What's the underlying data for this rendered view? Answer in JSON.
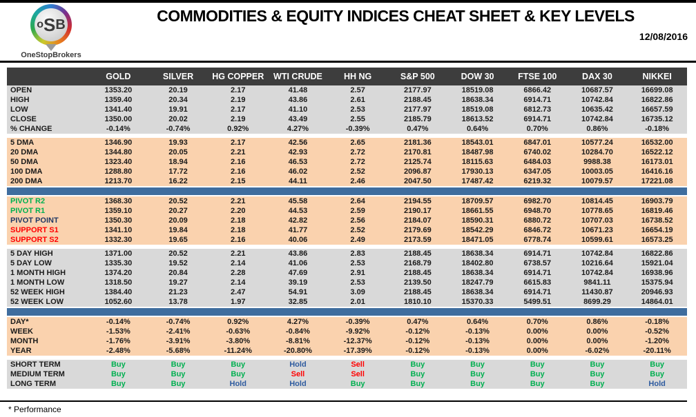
{
  "header": {
    "title": "COMMODITIES & EQUITY INDICES CHEAT SHEET & KEY LEVELS",
    "date": "12/08/2016",
    "logo": {
      "l1": "o",
      "l2": "S",
      "l3": "B",
      "brand": "OneStopBrokers"
    }
  },
  "colors": {
    "header_bar": "#3d3d3d",
    "gray": "#d9d9d9",
    "peach": "#fad2ae",
    "divider_blue": "#3f6d9e",
    "buy_green": "#00b050",
    "sell_red": "#ff0000",
    "hold_blue": "#2e5b9f",
    "pivot_green": "#00b050",
    "pivot_navy": "#1f3864",
    "support_red": "#ff0000"
  },
  "table": {
    "columns": [
      "GOLD",
      "SILVER",
      "HG COPPER",
      "WTI CRUDE",
      "HH NG",
      "S&P 500",
      "DOW 30",
      "FTSE 100",
      "DAX 30",
      "NIKKEI"
    ],
    "sections": [
      {
        "name": "ohlc",
        "bg": "gray",
        "divider_after": "gap",
        "rows": [
          {
            "label": "OPEN",
            "values": [
              "1353.20",
              "20.19",
              "2.17",
              "41.48",
              "2.57",
              "2177.97",
              "18519.08",
              "6866.42",
              "10687.57",
              "16699.08"
            ]
          },
          {
            "label": "HIGH",
            "values": [
              "1359.40",
              "20.34",
              "2.19",
              "43.86",
              "2.61",
              "2188.45",
              "18638.34",
              "6914.71",
              "10742.84",
              "16822.86"
            ]
          },
          {
            "label": "LOW",
            "values": [
              "1341.40",
              "19.91",
              "2.17",
              "41.10",
              "2.53",
              "2177.97",
              "18519.08",
              "6812.73",
              "10635.42",
              "16657.59"
            ]
          },
          {
            "label": "CLOSE",
            "values": [
              "1350.00",
              "20.02",
              "2.19",
              "43.49",
              "2.55",
              "2185.79",
              "18613.52",
              "6914.71",
              "10742.84",
              "16735.12"
            ]
          },
          {
            "label": "% CHANGE",
            "values": [
              "-0.14%",
              "-0.74%",
              "0.92%",
              "4.27%",
              "-0.39%",
              "0.47%",
              "0.64%",
              "0.70%",
              "0.86%",
              "-0.18%"
            ]
          }
        ]
      },
      {
        "name": "dma",
        "bg": "peach",
        "divider_after": "blue",
        "rows": [
          {
            "label": "5 DMA",
            "values": [
              "1346.90",
              "19.93",
              "2.17",
              "42.56",
              "2.65",
              "2181.36",
              "18543.01",
              "6847.01",
              "10577.24",
              "16532.00"
            ]
          },
          {
            "label": "20 DMA",
            "values": [
              "1344.80",
              "20.05",
              "2.21",
              "42.93",
              "2.72",
              "2170.81",
              "18487.98",
              "6740.02",
              "10284.70",
              "16522.12"
            ]
          },
          {
            "label": "50 DMA",
            "values": [
              "1323.40",
              "18.94",
              "2.16",
              "46.53",
              "2.72",
              "2125.74",
              "18115.63",
              "6484.03",
              "9988.38",
              "16173.01"
            ]
          },
          {
            "label": "100 DMA",
            "values": [
              "1288.80",
              "17.72",
              "2.16",
              "46.02",
              "2.52",
              "2096.87",
              "17930.13",
              "6347.05",
              "10003.05",
              "16416.16"
            ]
          },
          {
            "label": "200 DMA",
            "values": [
              "1213.70",
              "16.22",
              "2.15",
              "44.11",
              "2.46",
              "2047.50",
              "17487.42",
              "6219.32",
              "10079.57",
              "17221.08"
            ]
          }
        ]
      },
      {
        "name": "pivots",
        "bg": "peach",
        "divider_after": "gap",
        "rows": [
          {
            "label": "PIVOT R2",
            "label_color": "#00b050",
            "values": [
              "1368.30",
              "20.52",
              "2.21",
              "45.58",
              "2.64",
              "2194.55",
              "18709.57",
              "6982.70",
              "10814.45",
              "16903.79"
            ]
          },
          {
            "label": "PIVOT R1",
            "label_color": "#00b050",
            "values": [
              "1359.10",
              "20.27",
              "2.20",
              "44.53",
              "2.59",
              "2190.17",
              "18661.55",
              "6948.70",
              "10778.65",
              "16819.46"
            ]
          },
          {
            "label": "PIVOT POINT",
            "label_color": "#1f3864",
            "values": [
              "1350.30",
              "20.09",
              "2.18",
              "42.82",
              "2.56",
              "2184.07",
              "18590.31",
              "6880.72",
              "10707.03",
              "16738.52"
            ]
          },
          {
            "label": "SUPPORT S1",
            "label_color": "#ff0000",
            "values": [
              "1341.10",
              "19.84",
              "2.18",
              "41.77",
              "2.52",
              "2179.69",
              "18542.29",
              "6846.72",
              "10671.23",
              "16654.19"
            ]
          },
          {
            "label": "SUPPORT S2",
            "label_color": "#ff0000",
            "values": [
              "1332.30",
              "19.65",
              "2.16",
              "40.06",
              "2.49",
              "2173.59",
              "18471.05",
              "6778.74",
              "10599.61",
              "16573.25"
            ]
          }
        ]
      },
      {
        "name": "ranges",
        "bg": "gray",
        "divider_after": "blue",
        "rows": [
          {
            "label": "5 DAY HIGH",
            "values": [
              "1371.00",
              "20.52",
              "2.21",
              "43.86",
              "2.83",
              "2188.45",
              "18638.34",
              "6914.71",
              "10742.84",
              "16822.86"
            ]
          },
          {
            "label": "5 DAY LOW",
            "values": [
              "1335.30",
              "19.52",
              "2.14",
              "41.06",
              "2.53",
              "2168.79",
              "18402.80",
              "6738.57",
              "10216.64",
              "15921.04"
            ]
          },
          {
            "label": "1 MONTH HIGH",
            "values": [
              "1374.20",
              "20.84",
              "2.28",
              "47.69",
              "2.91",
              "2188.45",
              "18638.34",
              "6914.71",
              "10742.84",
              "16938.96"
            ]
          },
          {
            "label": "1 MONTH LOW",
            "values": [
              "1318.50",
              "19.27",
              "2.14",
              "39.19",
              "2.53",
              "2139.50",
              "18247.79",
              "6615.83",
              "9841.11",
              "15375.94"
            ]
          },
          {
            "label": "52 WEEK HIGH",
            "values": [
              "1384.40",
              "21.23",
              "2.47",
              "54.91",
              "3.09",
              "2188.45",
              "18638.34",
              "6914.71",
              "11430.87",
              "20946.93"
            ]
          },
          {
            "label": "52 WEEK LOW",
            "values": [
              "1052.60",
              "13.78",
              "1.97",
              "32.85",
              "2.01",
              "1810.10",
              "15370.33",
              "5499.51",
              "8699.29",
              "14864.01"
            ]
          }
        ]
      },
      {
        "name": "performance",
        "bg": "peach",
        "divider_after": "gap",
        "rows": [
          {
            "label": "DAY*",
            "values": [
              "-0.14%",
              "-0.74%",
              "0.92%",
              "4.27%",
              "-0.39%",
              "0.47%",
              "0.64%",
              "0.70%",
              "0.86%",
              "-0.18%"
            ]
          },
          {
            "label": "WEEK",
            "values": [
              "-1.53%",
              "-2.41%",
              "-0.63%",
              "-0.84%",
              "-9.92%",
              "-0.12%",
              "-0.13%",
              "0.00%",
              "0.00%",
              "-0.52%"
            ]
          },
          {
            "label": "MONTH",
            "values": [
              "-1.76%",
              "-3.91%",
              "-3.80%",
              "-8.81%",
              "-12.37%",
              "-0.12%",
              "-0.13%",
              "0.00%",
              "0.00%",
              "-1.20%"
            ]
          },
          {
            "label": "YEAR",
            "values": [
              "-2.48%",
              "-5.68%",
              "-11.24%",
              "-20.80%",
              "-17.39%",
              "-0.12%",
              "-0.13%",
              "0.00%",
              "-6.02%",
              "-20.11%"
            ]
          }
        ]
      },
      {
        "name": "signals",
        "bg": "gray",
        "divider_after": "none",
        "value_colors": {
          "Buy": "#00b050",
          "Sell": "#ff0000",
          "Hold": "#2e5b9f"
        },
        "rows": [
          {
            "label": "SHORT TERM",
            "values": [
              "Buy",
              "Buy",
              "Buy",
              "Hold",
              "Sell",
              "Buy",
              "Buy",
              "Buy",
              "Buy",
              "Buy"
            ]
          },
          {
            "label": "MEDIUM TERM",
            "values": [
              "Buy",
              "Buy",
              "Buy",
              "Sell",
              "Sell",
              "Buy",
              "Buy",
              "Buy",
              "Buy",
              "Buy"
            ]
          },
          {
            "label": "LONG TERM",
            "values": [
              "Buy",
              "Buy",
              "Hold",
              "Hold",
              "Buy",
              "Buy",
              "Buy",
              "Buy",
              "Buy",
              "Hold"
            ]
          }
        ]
      }
    ]
  },
  "footer": {
    "note": "* Performance"
  }
}
